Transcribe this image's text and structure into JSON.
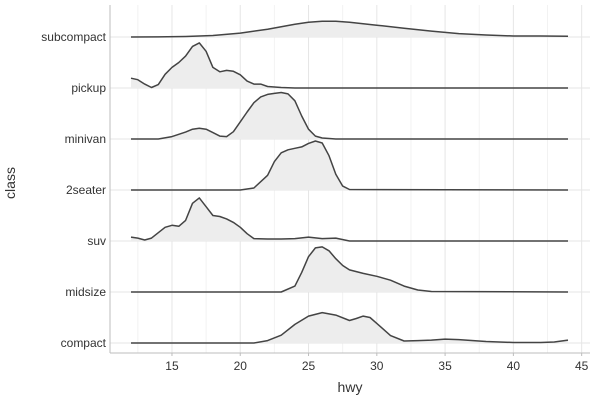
{
  "chart_data": {
    "type": "ridgeline",
    "xlabel": "hwy",
    "ylabel": "class",
    "xlim": [
      12,
      44
    ],
    "x_ticks": [
      15,
      20,
      25,
      30,
      35,
      40,
      45
    ],
    "x_tick_labels": [
      "15",
      "20",
      "25",
      "30",
      "35",
      "40",
      "45"
    ],
    "grid": true,
    "categories": [
      "subcompact",
      "pickup",
      "minivan",
      "2seater",
      "suv",
      "midsize",
      "compact"
    ],
    "series": [
      {
        "name": "subcompact",
        "x": [
          12,
          14,
          16,
          18,
          20,
          22,
          24,
          25,
          26,
          27,
          28,
          30,
          32,
          34,
          36,
          38,
          40,
          42,
          44
        ],
        "y": [
          0.0,
          0.002,
          0.01,
          0.03,
          0.08,
          0.16,
          0.26,
          0.3,
          0.32,
          0.32,
          0.3,
          0.24,
          0.18,
          0.12,
          0.07,
          0.04,
          0.02,
          0.02,
          0.015
        ]
      },
      {
        "name": "pickup",
        "x": [
          12,
          12.5,
          13,
          13.5,
          14,
          14.5,
          15,
          15.5,
          16,
          16.5,
          17,
          17.5,
          18,
          18.5,
          19,
          19.5,
          20,
          20.5,
          21,
          21.5,
          22,
          23,
          24,
          25,
          44
        ],
        "y": [
          0.2,
          0.17,
          0.08,
          0.01,
          0.07,
          0.28,
          0.42,
          0.52,
          0.65,
          0.85,
          0.92,
          0.75,
          0.42,
          0.33,
          0.36,
          0.34,
          0.27,
          0.14,
          0.08,
          0.08,
          0.03,
          0.01,
          0.0,
          0.0,
          0.0
        ]
      },
      {
        "name": "minivan",
        "x": [
          12,
          14,
          15,
          16,
          16.5,
          17,
          17.5,
          18,
          18.5,
          19,
          19.5,
          20,
          20.5,
          21,
          21.5,
          22,
          22.5,
          23,
          23.5,
          24,
          24.5,
          25,
          25.5,
          26,
          27,
          44
        ],
        "y": [
          0.0,
          0.0,
          0.05,
          0.14,
          0.2,
          0.22,
          0.2,
          0.13,
          0.06,
          0.05,
          0.15,
          0.35,
          0.55,
          0.74,
          0.86,
          0.91,
          0.93,
          0.95,
          0.92,
          0.78,
          0.47,
          0.2,
          0.06,
          0.02,
          0.0,
          0.0
        ]
      },
      {
        "name": "2seater",
        "x": [
          12,
          20,
          21,
          22,
          22.5,
          23,
          23.5,
          24,
          24.5,
          25,
          25.5,
          26,
          26.5,
          27,
          27.5,
          28,
          44
        ],
        "y": [
          0.0,
          0.0,
          0.04,
          0.3,
          0.58,
          0.76,
          0.82,
          0.85,
          0.88,
          0.95,
          1.0,
          0.96,
          0.7,
          0.32,
          0.08,
          0.01,
          0.0
        ]
      },
      {
        "name": "suv",
        "x": [
          12,
          12.5,
          13,
          13.5,
          14,
          14.5,
          15,
          15.5,
          16,
          16.5,
          17,
          17.5,
          18,
          18.5,
          19,
          19.5,
          20,
          20.5,
          21,
          22,
          23,
          24,
          25,
          26,
          27,
          28,
          44
        ],
        "y": [
          0.08,
          0.06,
          0.02,
          0.06,
          0.17,
          0.28,
          0.32,
          0.3,
          0.42,
          0.77,
          0.88,
          0.7,
          0.52,
          0.5,
          0.45,
          0.38,
          0.28,
          0.15,
          0.05,
          0.04,
          0.04,
          0.05,
          0.08,
          0.05,
          0.06,
          0.0,
          0.0
        ]
      },
      {
        "name": "midsize",
        "x": [
          12,
          23,
          24,
          24.5,
          25,
          25.5,
          26,
          26.5,
          27,
          27.5,
          28,
          29,
          30,
          31,
          32,
          33,
          34,
          44
        ],
        "y": [
          0.0,
          0.0,
          0.12,
          0.4,
          0.72,
          0.9,
          0.92,
          0.84,
          0.68,
          0.54,
          0.45,
          0.38,
          0.32,
          0.24,
          0.12,
          0.04,
          0.01,
          0.0
        ]
      },
      {
        "name": "compact",
        "x": [
          12,
          21,
          22,
          23,
          24,
          25,
          26,
          27,
          28,
          28.5,
          29,
          29.5,
          30,
          31,
          32,
          33,
          34,
          35,
          36,
          38,
          40,
          42,
          43,
          44
        ],
        "y": [
          0.0,
          0.0,
          0.05,
          0.16,
          0.38,
          0.55,
          0.62,
          0.57,
          0.46,
          0.5,
          0.55,
          0.52,
          0.4,
          0.15,
          0.04,
          0.05,
          0.06,
          0.08,
          0.07,
          0.03,
          0.01,
          0.01,
          0.02,
          0.06
        ]
      }
    ]
  }
}
